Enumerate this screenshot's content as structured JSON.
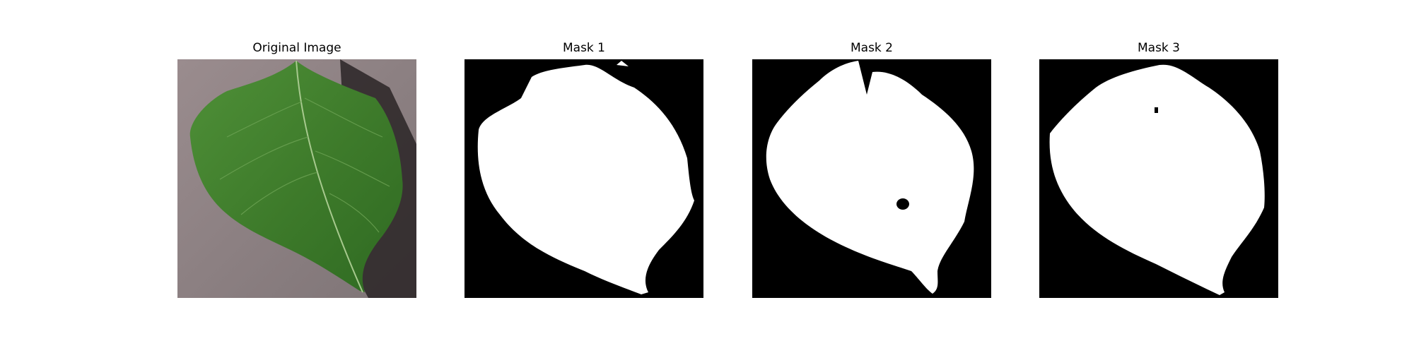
{
  "figure": {
    "panels": [
      {
        "title": "Original Image",
        "kind": "photo"
      },
      {
        "title": "Mask 1",
        "kind": "mask"
      },
      {
        "title": "Mask 2",
        "kind": "mask"
      },
      {
        "title": "Mask 3",
        "kind": "mask"
      }
    ]
  },
  "colors": {
    "background": "#ffffff",
    "mask_background": "#000000",
    "mask_foreground": "#ffffff",
    "leaf": "#3f7f2c",
    "surface": "#8a7e80"
  }
}
